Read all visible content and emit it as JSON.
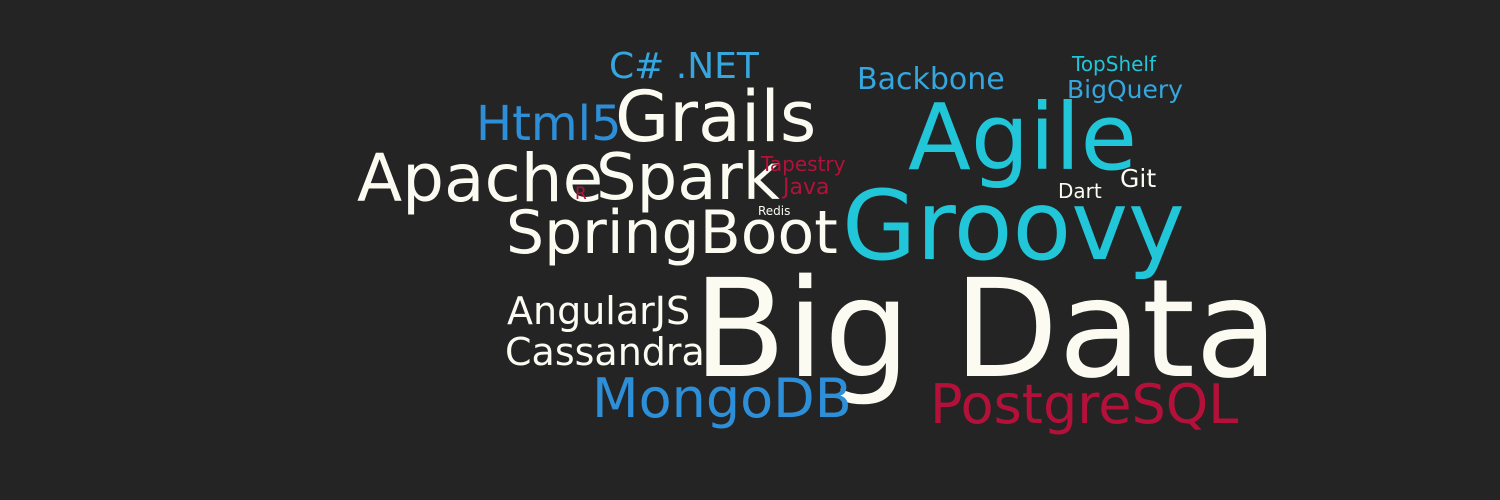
{
  "colors": {
    "background": "#242424",
    "white": "#fbfbf2",
    "cyan": "#21c6d8",
    "blue": "#2e8fd9",
    "light_blue": "#35a6de",
    "red": "#b4113a"
  },
  "words": {
    "csharp_net": "C# .NET",
    "html5": "Html5",
    "grails": "Grails",
    "apache": "Apache",
    "r": "R",
    "spark": "Spark",
    "tapestry": "Tapestry",
    "java": "Java",
    "redis": "Redis",
    "springboot": "SpringBoot",
    "backbone": "Backbone",
    "topshelf": "TopShelf",
    "bigquery": "BigQuery",
    "agile": "Agile",
    "dart": "Dart",
    "git": "Git",
    "groovy": "Groovy",
    "angularjs": "AngularJS",
    "cassandra": "Cassandra",
    "big_data": "Big Data",
    "mongodb": "MongoDB",
    "postgresql": "PostgreSQL"
  }
}
